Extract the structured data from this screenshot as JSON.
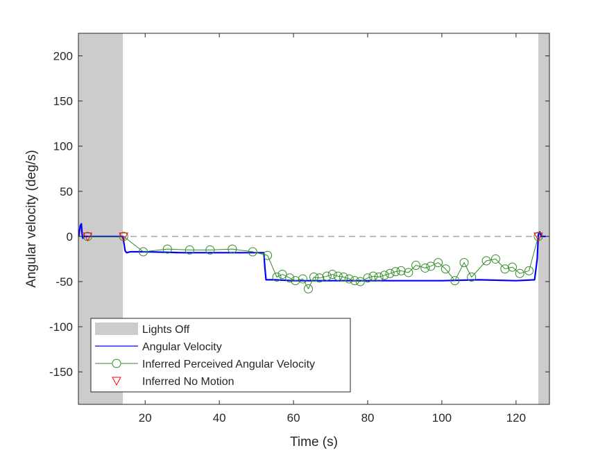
{
  "chart_data": {
    "type": "line",
    "title": "",
    "xlabel": "Time (s)",
    "ylabel": "Angular velocity (deg/s)",
    "xlim": [
      2,
      129
    ],
    "ylim": [
      -186,
      225
    ],
    "xticks": [
      20,
      40,
      60,
      80,
      100,
      120
    ],
    "yticks": [
      200,
      150,
      100,
      50,
      0,
      -50,
      -100,
      -150
    ],
    "grid": false,
    "legend_position": "bottom-left",
    "lights_off": [
      [
        2,
        14
      ],
      [
        126,
        129
      ]
    ],
    "zero_line": 0,
    "legend": [
      {
        "key": "lights",
        "label": "Lights Off"
      },
      {
        "key": "angular",
        "label": "Angular Velocity"
      },
      {
        "key": "perceived",
        "label": "Inferred Perceived Angular Velocity"
      },
      {
        "key": "nomotion",
        "label": "Inferred No Motion"
      }
    ],
    "series": [
      {
        "name": "Angular Velocity",
        "style": "line",
        "color": "#0000ff",
        "x": [
          2.1,
          2.5,
          2.8,
          3.0,
          3.2,
          3.5,
          14.0,
          14.2,
          14.6,
          15.0,
          16,
          20,
          30,
          40,
          50,
          52,
          52.3,
          52.6,
          53,
          55,
          60,
          70,
          80,
          90,
          100,
          110,
          120,
          125,
          125.7,
          126,
          126.4,
          126.8,
          127.2,
          128.0
        ],
        "y": [
          0,
          12,
          14,
          3,
          -2,
          0,
          0,
          -5,
          -16,
          -18,
          -17,
          -17,
          -18,
          -18,
          -18,
          -18,
          -35,
          -48,
          -48,
          -48,
          -49,
          -49,
          -49,
          -49,
          -49,
          -48,
          -49,
          -48,
          -25,
          2,
          5,
          0,
          0,
          0
        ]
      },
      {
        "name": "Inferred Perceived Angular Velocity",
        "style": "line-markers",
        "marker": "circle",
        "color": "#2e8b22",
        "x": [
          4.5,
          14.2,
          19.5,
          26.0,
          32.0,
          37.5,
          43.5,
          49.0,
          53.0,
          55.5,
          57.0,
          59.0,
          60.5,
          62.5,
          64.0,
          65.5,
          67.0,
          69.0,
          70.5,
          72.0,
          73.5,
          75.0,
          76.5,
          78.0,
          80.0,
          81.5,
          83.0,
          84.5,
          86.0,
          87.5,
          89.0,
          91.0,
          93.0,
          95.5,
          97.0,
          99.0,
          101.0,
          103.5,
          106.0,
          108.0,
          112.0,
          114.5,
          117.0,
          119.0,
          121.0,
          123.5,
          126.0
        ],
        "y": [
          0,
          0,
          -17,
          -14,
          -15,
          -15,
          -14,
          -17,
          -21,
          -45,
          -42,
          -46,
          -49,
          -47,
          -58,
          -45,
          -46,
          -44,
          -42,
          -44,
          -45,
          -47,
          -49,
          -50,
          -46,
          -44,
          -45,
          -43,
          -41,
          -39,
          -38,
          -40,
          -32,
          -35,
          -33,
          -29,
          -36,
          -49,
          -29,
          -45,
          -27,
          -25,
          -36,
          -34,
          -41,
          -38,
          0
        ]
      },
      {
        "name": "Inferred No Motion",
        "style": "markers",
        "marker": "triangle-down",
        "color": "#ff0000",
        "x": [
          4.5,
          14.2,
          126.0
        ],
        "y": [
          0,
          0,
          0
        ]
      }
    ]
  }
}
